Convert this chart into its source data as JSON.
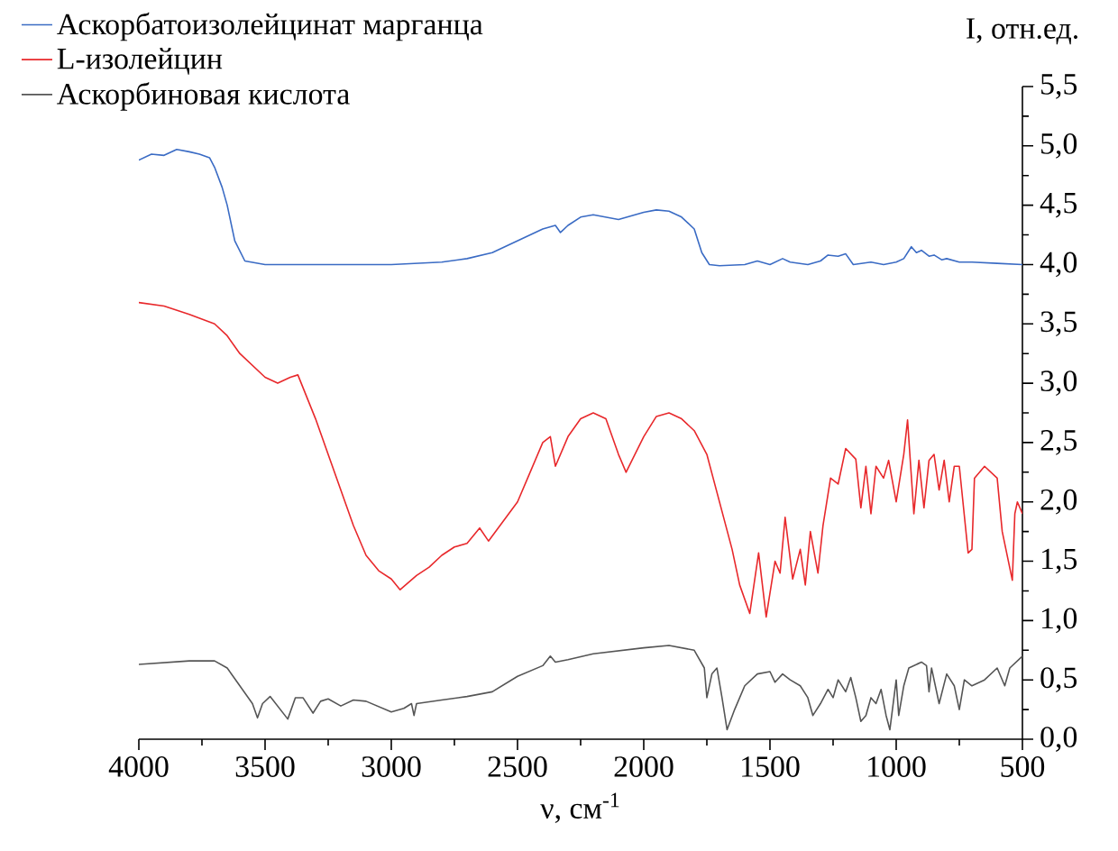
{
  "chart_data": {
    "type": "line",
    "xlabel": "ν, см$^{-1}$",
    "ylabel": "I, отн.ед.",
    "xlim": [
      4000,
      500
    ],
    "xticks": [
      4000,
      3500,
      3000,
      2500,
      2000,
      1500,
      1000,
      500
    ],
    "ylim": [
      0,
      5.5
    ],
    "yticks": [
      {
        "value": 0,
        "label": "0,0"
      },
      {
        "value": 0.5,
        "label": "0,5"
      },
      {
        "value": 1,
        "label": "1,0"
      },
      {
        "value": 1.5,
        "label": "1,5"
      },
      {
        "value": 2,
        "label": "2,0"
      },
      {
        "value": 2.5,
        "label": "2,5"
      },
      {
        "value": 3,
        "label": "3,0"
      },
      {
        "value": 3.5,
        "label": "3,5"
      },
      {
        "value": 4,
        "label": "4,0"
      },
      {
        "value": 4.5,
        "label": "4,5"
      },
      {
        "value": 5,
        "label": "5,0"
      },
      {
        "value": 5.5,
        "label": "5,5"
      }
    ],
    "legend": "top left",
    "series": [
      {
        "name": "Аскорбатоизолейцинат марганца",
        "color": "#3a6bc4",
        "x": [
          4000,
          3950,
          3900,
          3850,
          3800,
          3760,
          3720,
          3700,
          3670,
          3650,
          3620,
          3580,
          3500,
          3000,
          2800,
          2700,
          2600,
          2500,
          2400,
          2350,
          2330,
          2300,
          2250,
          2200,
          2100,
          2000,
          1950,
          1900,
          1850,
          1800,
          1770,
          1740,
          1700,
          1600,
          1550,
          1500,
          1450,
          1420,
          1350,
          1300,
          1270,
          1230,
          1200,
          1170,
          1100,
          1050,
          1000,
          970,
          940,
          920,
          900,
          870,
          850,
          820,
          800,
          750,
          700,
          600,
          500
        ],
        "values": [
          4.88,
          4.93,
          4.92,
          4.97,
          4.95,
          4.93,
          4.9,
          4.82,
          4.65,
          4.5,
          4.2,
          4.03,
          4.0,
          4.0,
          4.02,
          4.05,
          4.1,
          4.2,
          4.3,
          4.33,
          4.27,
          4.33,
          4.4,
          4.42,
          4.38,
          4.44,
          4.46,
          4.45,
          4.4,
          4.3,
          4.1,
          4.0,
          3.99,
          4.0,
          4.03,
          4.0,
          4.05,
          4.02,
          4.0,
          4.03,
          4.08,
          4.07,
          4.09,
          4.0,
          4.02,
          4.0,
          4.02,
          4.05,
          4.15,
          4.1,
          4.12,
          4.07,
          4.08,
          4.04,
          4.05,
          4.02,
          4.02,
          4.01,
          4.0
        ]
      },
      {
        "name": "L-изолейцин",
        "color": "#e8282b",
        "x": [
          4000,
          3900,
          3800,
          3700,
          3650,
          3600,
          3550,
          3500,
          3450,
          3400,
          3370,
          3300,
          3200,
          3150,
          3100,
          3050,
          3000,
          2965,
          2900,
          2850,
          2800,
          2750,
          2700,
          2650,
          2615,
          2500,
          2450,
          2400,
          2370,
          2350,
          2300,
          2250,
          2200,
          2150,
          2100,
          2070,
          2000,
          1950,
          1900,
          1850,
          1800,
          1750,
          1700,
          1650,
          1620,
          1580,
          1545,
          1515,
          1480,
          1460,
          1440,
          1410,
          1380,
          1360,
          1340,
          1310,
          1290,
          1260,
          1230,
          1200,
          1160,
          1140,
          1120,
          1100,
          1080,
          1050,
          1030,
          1000,
          970,
          955,
          930,
          910,
          890,
          870,
          850,
          830,
          810,
          790,
          770,
          750,
          715,
          700,
          690,
          650,
          600,
          580,
          540,
          530,
          520,
          500
        ],
        "values": [
          3.68,
          3.65,
          3.58,
          3.5,
          3.4,
          3.25,
          3.15,
          3.05,
          3.0,
          3.05,
          3.07,
          2.7,
          2.1,
          1.8,
          1.55,
          1.42,
          1.35,
          1.26,
          1.38,
          1.45,
          1.55,
          1.62,
          1.65,
          1.78,
          1.67,
          2.0,
          2.25,
          2.5,
          2.55,
          2.3,
          2.55,
          2.7,
          2.75,
          2.7,
          2.4,
          2.25,
          2.55,
          2.72,
          2.75,
          2.7,
          2.6,
          2.4,
          2.0,
          1.6,
          1.3,
          1.06,
          1.57,
          1.03,
          1.5,
          1.4,
          1.87,
          1.35,
          1.6,
          1.3,
          1.75,
          1.4,
          1.8,
          2.2,
          2.15,
          2.45,
          2.36,
          1.95,
          2.3,
          1.9,
          2.3,
          2.2,
          2.35,
          2.0,
          2.4,
          2.69,
          1.9,
          2.35,
          1.95,
          2.35,
          2.4,
          2.1,
          2.35,
          2.0,
          2.3,
          2.3,
          1.57,
          1.6,
          2.2,
          2.3,
          2.2,
          1.75,
          1.34,
          1.9,
          2.0,
          1.9
        ]
      },
      {
        "name": "Аскорбиновая кислота",
        "color": "#555555",
        "x": [
          4000,
          3800,
          3700,
          3650,
          3600,
          3550,
          3530,
          3510,
          3480,
          3410,
          3380,
          3350,
          3310,
          3280,
          3250,
          3200,
          3150,
          3100,
          3000,
          2950,
          2920,
          2910,
          2900,
          2800,
          2700,
          2600,
          2500,
          2400,
          2370,
          2350,
          2300,
          2200,
          2000,
          1900,
          1800,
          1760,
          1750,
          1730,
          1710,
          1690,
          1670,
          1640,
          1600,
          1550,
          1500,
          1480,
          1450,
          1420,
          1380,
          1350,
          1330,
          1300,
          1270,
          1250,
          1230,
          1200,
          1180,
          1160,
          1140,
          1120,
          1100,
          1080,
          1060,
          1040,
          1025,
          1000,
          990,
          970,
          950,
          900,
          880,
          870,
          860,
          830,
          800,
          770,
          750,
          730,
          700,
          650,
          600,
          570,
          550,
          500
        ],
        "values": [
          0.63,
          0.66,
          0.66,
          0.6,
          0.45,
          0.3,
          0.18,
          0.3,
          0.36,
          0.17,
          0.35,
          0.35,
          0.22,
          0.32,
          0.34,
          0.28,
          0.33,
          0.32,
          0.23,
          0.26,
          0.3,
          0.2,
          0.3,
          0.33,
          0.36,
          0.4,
          0.53,
          0.62,
          0.7,
          0.65,
          0.67,
          0.72,
          0.77,
          0.79,
          0.75,
          0.6,
          0.35,
          0.55,
          0.6,
          0.35,
          0.08,
          0.25,
          0.45,
          0.55,
          0.57,
          0.48,
          0.55,
          0.5,
          0.45,
          0.35,
          0.2,
          0.3,
          0.42,
          0.35,
          0.5,
          0.4,
          0.52,
          0.35,
          0.15,
          0.2,
          0.35,
          0.3,
          0.42,
          0.2,
          0.08,
          0.5,
          0.2,
          0.45,
          0.6,
          0.65,
          0.62,
          0.4,
          0.6,
          0.3,
          0.55,
          0.45,
          0.25,
          0.5,
          0.45,
          0.5,
          0.6,
          0.45,
          0.6,
          0.7
        ]
      }
    ]
  }
}
